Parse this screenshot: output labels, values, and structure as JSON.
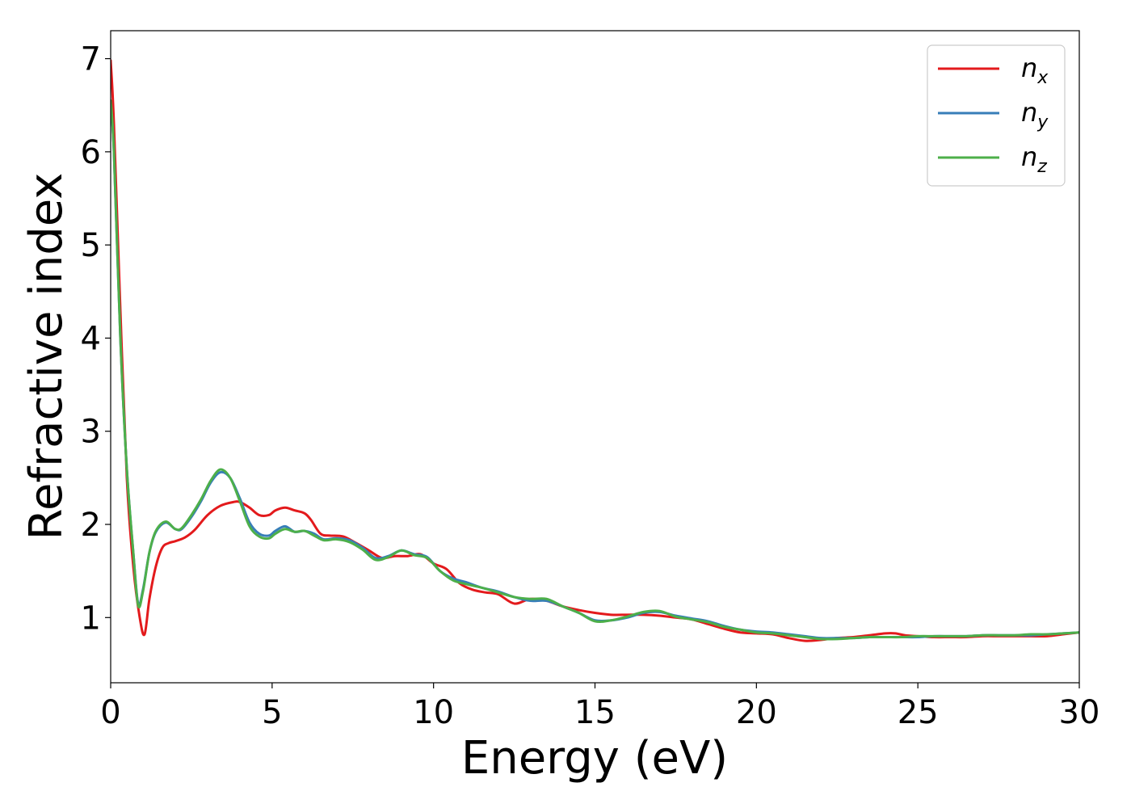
{
  "chart_data": {
    "type": "line",
    "title": "",
    "xlabel": "Energy (eV)",
    "ylabel": "Refractive index",
    "xlim": [
      0,
      30
    ],
    "ylim": [
      0.3,
      7.3
    ],
    "xticks": [
      "0",
      "5",
      "10",
      "15",
      "20",
      "25",
      "30"
    ],
    "yticks": [
      "1",
      "2",
      "3",
      "4",
      "5",
      "6",
      "7"
    ],
    "grid": false,
    "legend_position": "top-right",
    "series": [
      {
        "name": "n",
        "subscript": "x",
        "color": "#e31a1c",
        "x": [
          0,
          0.1,
          0.3,
          0.5,
          0.7,
          0.9,
          1.05,
          1.2,
          1.4,
          1.6,
          1.8,
          2.0,
          2.3,
          2.6,
          3.0,
          3.4,
          3.8,
          4.0,
          4.3,
          4.6,
          4.9,
          5.1,
          5.4,
          5.7,
          6.0,
          6.2,
          6.5,
          6.8,
          7.2,
          7.6,
          8.0,
          8.4,
          8.8,
          9.2,
          9.6,
          10.0,
          10.4,
          10.8,
          11.2,
          11.6,
          12.0,
          12.5,
          13.0,
          13.5,
          14.0,
          14.5,
          15.0,
          15.5,
          16.0,
          16.5,
          17.0,
          17.5,
          18.0,
          18.5,
          19.0,
          19.5,
          20.0,
          20.5,
          21.0,
          21.5,
          22.0,
          22.5,
          23.0,
          23.5,
          24.0,
          24.3,
          24.6,
          25.0,
          25.5,
          26.0,
          26.5,
          27.0,
          27.5,
          28.0,
          28.5,
          29.0,
          29.5,
          30.0
        ],
        "y": [
          6.98,
          6.3,
          4.3,
          2.5,
          1.55,
          1.0,
          0.82,
          1.2,
          1.55,
          1.75,
          1.8,
          1.82,
          1.86,
          1.94,
          2.1,
          2.2,
          2.24,
          2.24,
          2.18,
          2.1,
          2.1,
          2.15,
          2.18,
          2.15,
          2.12,
          2.05,
          1.9,
          1.88,
          1.87,
          1.8,
          1.72,
          1.64,
          1.66,
          1.66,
          1.68,
          1.58,
          1.52,
          1.37,
          1.3,
          1.27,
          1.25,
          1.15,
          1.2,
          1.18,
          1.12,
          1.08,
          1.05,
          1.03,
          1.03,
          1.03,
          1.02,
          1.0,
          0.98,
          0.93,
          0.88,
          0.84,
          0.83,
          0.82,
          0.78,
          0.75,
          0.76,
          0.78,
          0.79,
          0.81,
          0.83,
          0.83,
          0.81,
          0.8,
          0.79,
          0.79,
          0.79,
          0.8,
          0.8,
          0.8,
          0.8,
          0.8,
          0.82,
          0.84
        ]
      },
      {
        "name": "n",
        "subscript": "y",
        "color": "#377eb8",
        "x": [
          0,
          0.1,
          0.3,
          0.5,
          0.7,
          0.85,
          1.0,
          1.2,
          1.4,
          1.7,
          2.0,
          2.2,
          2.5,
          2.8,
          3.1,
          3.4,
          3.7,
          4.0,
          4.3,
          4.6,
          4.9,
          5.1,
          5.4,
          5.7,
          6.0,
          6.3,
          6.6,
          7.0,
          7.4,
          7.8,
          8.2,
          8.6,
          9.0,
          9.4,
          9.8,
          10.2,
          10.6,
          11.0,
          11.5,
          12.0,
          12.5,
          13.0,
          13.5,
          14.0,
          14.5,
          15.0,
          15.5,
          16.0,
          16.5,
          17.0,
          17.5,
          18.0,
          18.5,
          19.0,
          19.5,
          20.0,
          20.5,
          21.0,
          21.5,
          22.0,
          22.5,
          23.0,
          23.5,
          24.0,
          24.5,
          25.0,
          25.5,
          26.0,
          26.5,
          27.0,
          27.5,
          28.0,
          28.5,
          29.0,
          29.5,
          30.0
        ],
        "y": [
          6.5,
          6.0,
          4.0,
          2.6,
          1.7,
          1.15,
          1.3,
          1.7,
          1.92,
          2.02,
          1.95,
          1.95,
          2.08,
          2.25,
          2.45,
          2.56,
          2.5,
          2.28,
          2.02,
          1.9,
          1.88,
          1.93,
          1.98,
          1.92,
          1.93,
          1.9,
          1.84,
          1.85,
          1.83,
          1.75,
          1.64,
          1.66,
          1.72,
          1.68,
          1.65,
          1.5,
          1.42,
          1.38,
          1.32,
          1.28,
          1.22,
          1.18,
          1.18,
          1.12,
          1.05,
          0.97,
          0.97,
          1.0,
          1.05,
          1.06,
          1.02,
          0.99,
          0.96,
          0.91,
          0.87,
          0.85,
          0.84,
          0.82,
          0.8,
          0.78,
          0.78,
          0.78,
          0.79,
          0.79,
          0.79,
          0.79,
          0.8,
          0.8,
          0.8,
          0.81,
          0.81,
          0.81,
          0.81,
          0.82,
          0.83,
          0.84
        ]
      },
      {
        "name": "n",
        "subscript": "z",
        "color": "#4daf4a",
        "x": [
          0,
          0.1,
          0.3,
          0.5,
          0.7,
          0.85,
          1.0,
          1.2,
          1.4,
          1.7,
          2.0,
          2.2,
          2.5,
          2.8,
          3.1,
          3.4,
          3.7,
          4.0,
          4.3,
          4.6,
          4.9,
          5.1,
          5.4,
          5.7,
          6.0,
          6.3,
          6.6,
          7.0,
          7.4,
          7.8,
          8.2,
          8.6,
          9.0,
          9.4,
          9.8,
          10.2,
          10.6,
          11.0,
          11.5,
          12.0,
          12.5,
          13.0,
          13.5,
          14.0,
          14.5,
          15.0,
          15.5,
          16.0,
          16.5,
          17.0,
          17.5,
          18.0,
          18.5,
          19.0,
          19.5,
          20.0,
          20.5,
          21.0,
          21.5,
          22.0,
          22.5,
          23.0,
          23.5,
          24.0,
          24.5,
          25.0,
          25.5,
          26.0,
          26.5,
          27.0,
          27.5,
          28.0,
          28.5,
          29.0,
          29.5,
          30.0
        ],
        "y": [
          6.55,
          6.0,
          4.0,
          2.6,
          1.7,
          1.13,
          1.28,
          1.7,
          1.93,
          2.03,
          1.95,
          1.96,
          2.1,
          2.27,
          2.47,
          2.59,
          2.5,
          2.25,
          1.98,
          1.87,
          1.85,
          1.9,
          1.95,
          1.92,
          1.93,
          1.88,
          1.83,
          1.84,
          1.81,
          1.73,
          1.62,
          1.65,
          1.72,
          1.67,
          1.64,
          1.5,
          1.4,
          1.36,
          1.32,
          1.27,
          1.22,
          1.2,
          1.2,
          1.12,
          1.05,
          0.96,
          0.97,
          1.01,
          1.06,
          1.07,
          1.01,
          0.98,
          0.95,
          0.9,
          0.87,
          0.84,
          0.83,
          0.81,
          0.79,
          0.77,
          0.77,
          0.78,
          0.79,
          0.79,
          0.79,
          0.8,
          0.8,
          0.8,
          0.8,
          0.81,
          0.81,
          0.81,
          0.82,
          0.82,
          0.83,
          0.84
        ]
      }
    ]
  }
}
